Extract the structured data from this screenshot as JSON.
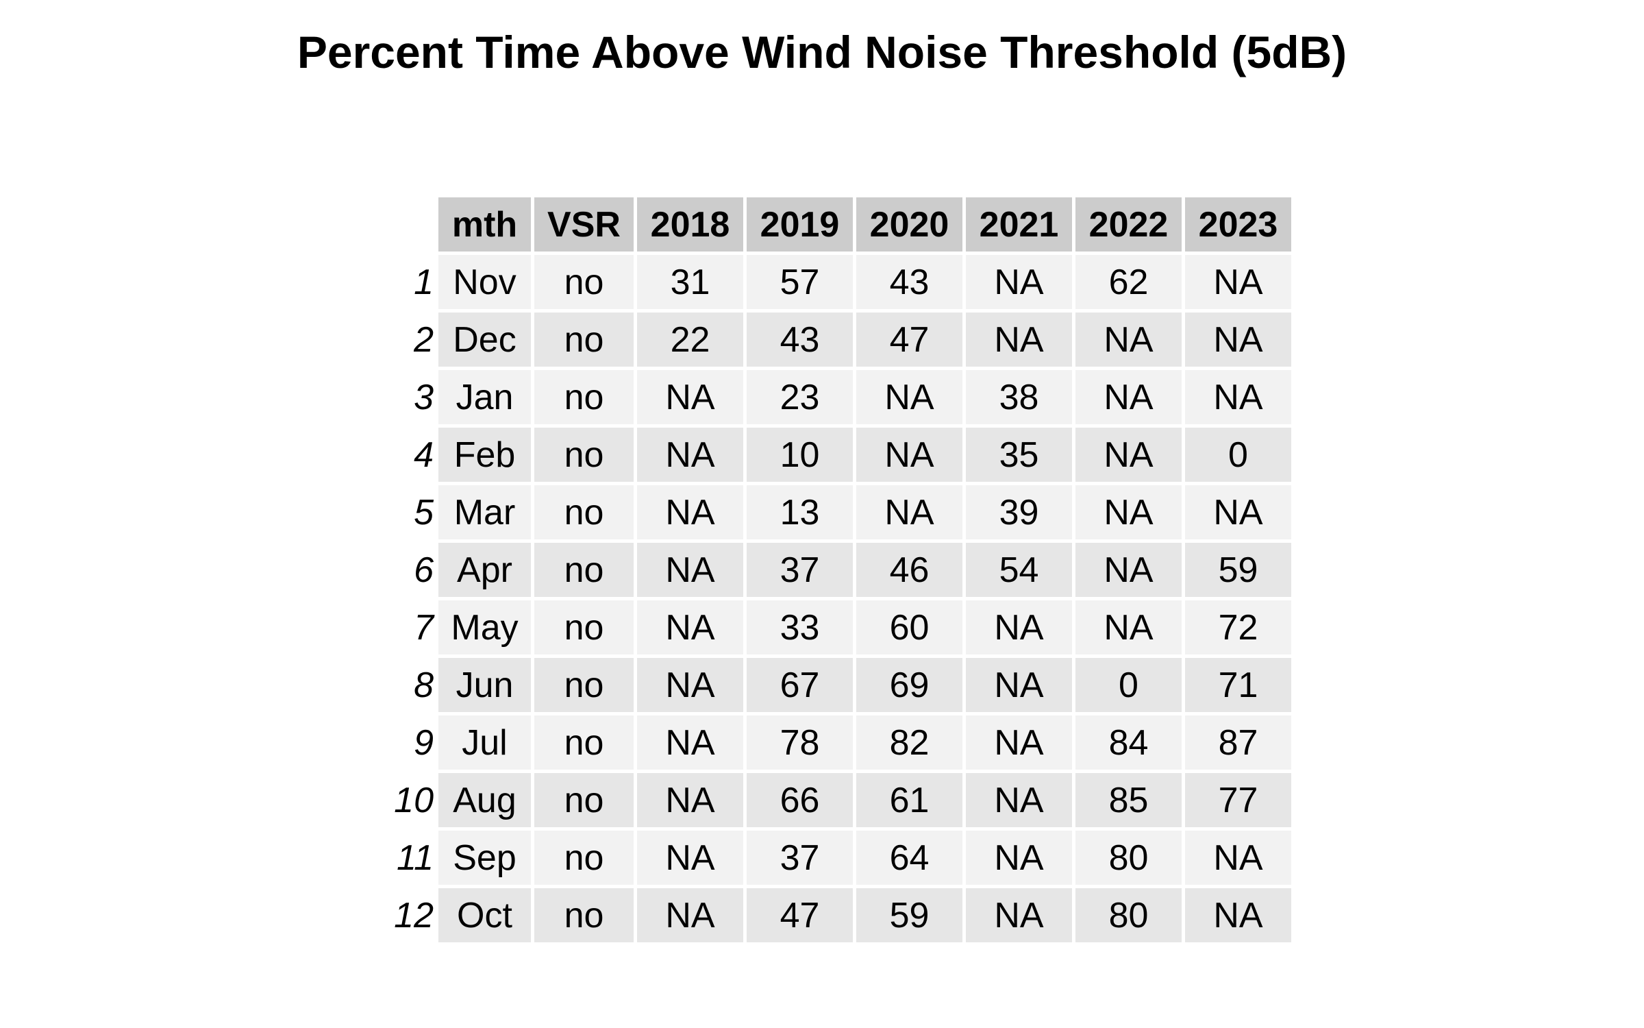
{
  "chart_data": {
    "type": "table",
    "title": "Percent Time Above Wind Noise Threshold (5dB)",
    "columns": [
      "mth",
      "VSR",
      "2018",
      "2019",
      "2020",
      "2021",
      "2022",
      "2023"
    ],
    "rows": [
      {
        "index": "1",
        "cells": [
          "Nov",
          "no",
          "31",
          "57",
          "43",
          "NA",
          "62",
          "NA"
        ]
      },
      {
        "index": "2",
        "cells": [
          "Dec",
          "no",
          "22",
          "43",
          "47",
          "NA",
          "NA",
          "NA"
        ]
      },
      {
        "index": "3",
        "cells": [
          "Jan",
          "no",
          "NA",
          "23",
          "NA",
          "38",
          "NA",
          "NA"
        ]
      },
      {
        "index": "4",
        "cells": [
          "Feb",
          "no",
          "NA",
          "10",
          "NA",
          "35",
          "NA",
          "0"
        ]
      },
      {
        "index": "5",
        "cells": [
          "Mar",
          "no",
          "NA",
          "13",
          "NA",
          "39",
          "NA",
          "NA"
        ]
      },
      {
        "index": "6",
        "cells": [
          "Apr",
          "no",
          "NA",
          "37",
          "46",
          "54",
          "NA",
          "59"
        ]
      },
      {
        "index": "7",
        "cells": [
          "May",
          "no",
          "NA",
          "33",
          "60",
          "NA",
          "NA",
          "72"
        ]
      },
      {
        "index": "8",
        "cells": [
          "Jun",
          "no",
          "NA",
          "67",
          "69",
          "NA",
          "0",
          "71"
        ]
      },
      {
        "index": "9",
        "cells": [
          "Jul",
          "no",
          "NA",
          "78",
          "82",
          "NA",
          "84",
          "87"
        ]
      },
      {
        "index": "10",
        "cells": [
          "Aug",
          "no",
          "NA",
          "66",
          "61",
          "NA",
          "85",
          "77"
        ]
      },
      {
        "index": "11",
        "cells": [
          "Sep",
          "no",
          "NA",
          "37",
          "64",
          "NA",
          "80",
          "NA"
        ]
      },
      {
        "index": "12",
        "cells": [
          "Oct",
          "no",
          "NA",
          "47",
          "59",
          "NA",
          "80",
          "NA"
        ]
      }
    ],
    "colors": {
      "header_fill": "#cccccc",
      "row_fill_odd": "#f2f2f2",
      "row_fill_even": "#e6e6e6",
      "text": "#000000"
    }
  }
}
